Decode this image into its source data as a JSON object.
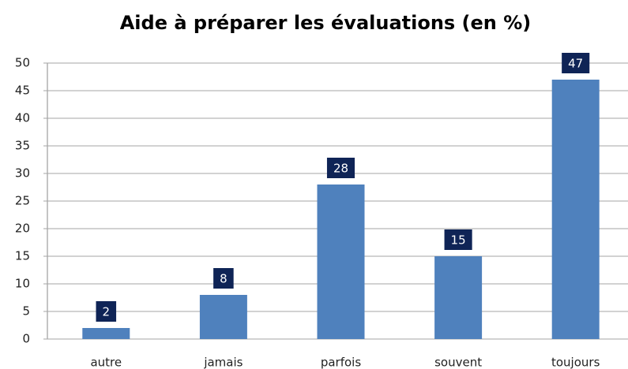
{
  "chart_data": {
    "type": "bar",
    "title": "Aide à préparer les évaluations (en %)",
    "categories": [
      "autre",
      "jamais",
      "parfois",
      "souvent",
      "toujours"
    ],
    "values": [
      2,
      8,
      28,
      15,
      47
    ],
    "color": "#4f81bd",
    "label_box_color": "#0f2456",
    "ylim": [
      0,
      50
    ],
    "yticks": [
      0,
      5,
      10,
      15,
      20,
      25,
      30,
      35,
      40,
      45,
      50
    ],
    "grid": true
  }
}
